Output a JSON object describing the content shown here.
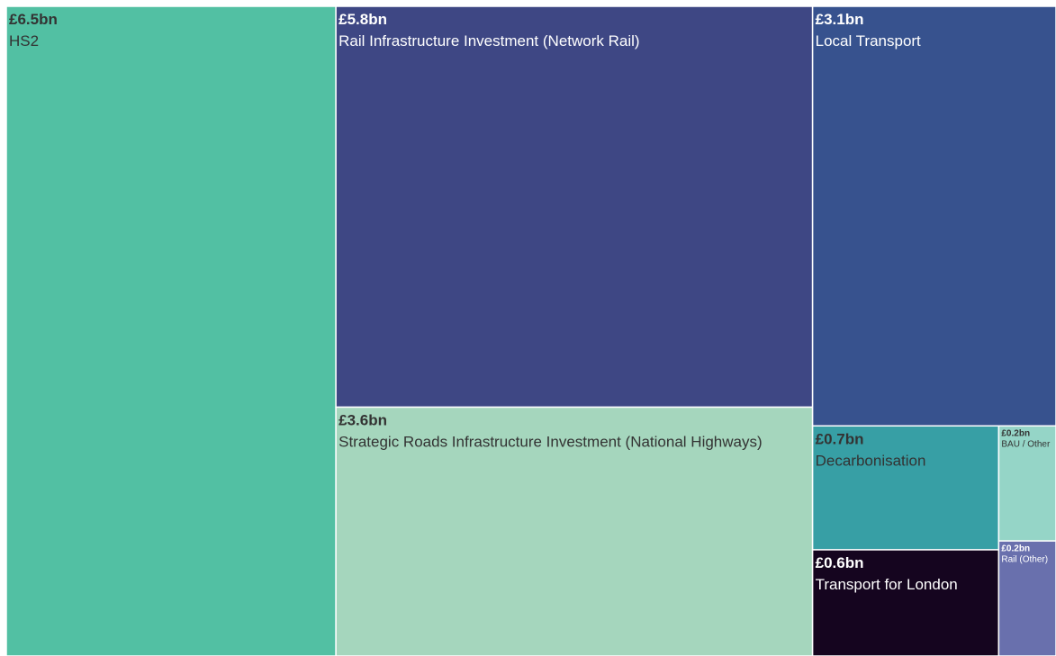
{
  "chart_data": {
    "type": "treemap",
    "categories": [
      "HS2",
      "Rail Infrastructure Investment (Network Rail)",
      "Strategic Roads Infrastructure Investment (National Highways)",
      "Local Transport",
      "Decarbonisation",
      "Transport for London",
      "BAU / Other",
      "Rail (Other)"
    ],
    "values": [
      6.5,
      5.8,
      3.6,
      3.1,
      0.7,
      0.6,
      0.2,
      0.2
    ],
    "value_labels": [
      "£6.5bn",
      "£5.8bn",
      "£3.6bn",
      "£3.1bn",
      "£0.7bn",
      "£0.6bn",
      "£0.2bn",
      "£0.2bn"
    ],
    "colors": [
      "#52c0a3",
      "#3e4784",
      "#a5d6bd",
      "#37528e",
      "#379fa5",
      "#15051f",
      "#95d5c7",
      "#6970ad"
    ]
  }
}
